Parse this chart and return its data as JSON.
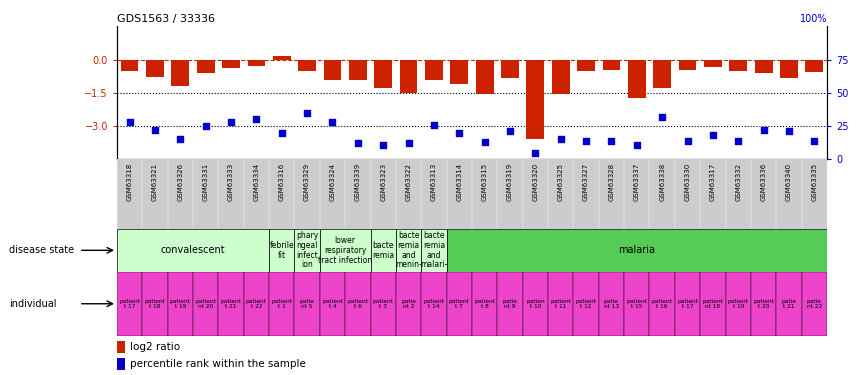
{
  "title": "GDS1563 / 33336",
  "samples": [
    "GSM63318",
    "GSM63321",
    "GSM63326",
    "GSM63331",
    "GSM63333",
    "GSM63334",
    "GSM63316",
    "GSM63329",
    "GSM63324",
    "GSM63339",
    "GSM63323",
    "GSM63322",
    "GSM63313",
    "GSM63314",
    "GSM63315",
    "GSM63319",
    "GSM63320",
    "GSM63325",
    "GSM63327",
    "GSM63328",
    "GSM63337",
    "GSM63338",
    "GSM63330",
    "GSM63317",
    "GSM63332",
    "GSM63336",
    "GSM63340",
    "GSM63335"
  ],
  "log2_ratio": [
    -0.5,
    -0.8,
    -1.2,
    -0.6,
    -0.4,
    -0.3,
    0.15,
    -0.5,
    -0.9,
    -0.9,
    -1.3,
    -1.5,
    -0.9,
    -1.1,
    -1.55,
    -0.85,
    -3.6,
    -1.55,
    -0.5,
    -0.45,
    -1.75,
    -1.3,
    -0.45,
    -0.35,
    -0.5,
    -0.6,
    -0.85,
    -0.55
  ],
  "percentile_rank": [
    28,
    22,
    15,
    25,
    28,
    30,
    20,
    35,
    28,
    12,
    11,
    12,
    26,
    20,
    13,
    21,
    5,
    15,
    14,
    14,
    11,
    32,
    14,
    18,
    14,
    22,
    21,
    14
  ],
  "disease_state_groups": [
    {
      "label": "convalescent",
      "start": 0,
      "end": 5,
      "color": "#ccffcc"
    },
    {
      "label": "febrile\nfit",
      "start": 6,
      "end": 6,
      "color": "#ccffcc"
    },
    {
      "label": "phary\nngeal\ninfect\nion",
      "start": 7,
      "end": 7,
      "color": "#ccffcc"
    },
    {
      "label": "lower\nrespiratory\ntract infection",
      "start": 8,
      "end": 9,
      "color": "#ccffcc"
    },
    {
      "label": "bacte\nremia",
      "start": 10,
      "end": 10,
      "color": "#ccffcc"
    },
    {
      "label": "bacte\nremia\nand\nmenin-",
      "start": 11,
      "end": 11,
      "color": "#ccffcc"
    },
    {
      "label": "bacte\nremia\nand\nmalari-",
      "start": 12,
      "end": 12,
      "color": "#ccffcc"
    },
    {
      "label": "malaria",
      "start": 13,
      "end": 27,
      "color": "#55cc55"
    }
  ],
  "individual_labels": [
    "patient\nt 17",
    "patient\nt 18",
    "patient\nt 19",
    "patient\nnt 20",
    "patient\nt 21",
    "patient\nt 22",
    "patient\nt 1",
    "patie\nnt 5",
    "patient\nt 4",
    "patient\nt 6",
    "patient\nt 3",
    "patie\nnt 2",
    "patient\nt 14",
    "patient\nt 7",
    "patient\nt 8",
    "patie\nnt 9",
    "patien\nt 10",
    "patient\nt 11",
    "patient\nt 12",
    "patie\nnt 13",
    "patient\nt 15",
    "patient\nt 16",
    "patient\nt 17",
    "patient\nnt 18",
    "patient\nt 19",
    "patient\nt 20",
    "patie\nt 21",
    "patie\nnt 22"
  ],
  "ylim_left": [
    -4.5,
    1.5
  ],
  "ylim_right": [
    0,
    100
  ],
  "yticks_left": [
    0,
    -1.5,
    -3.0
  ],
  "yticks_right": [
    75,
    50,
    25,
    0
  ],
  "bar_color": "#cc2200",
  "dot_color": "#0000cc",
  "ref_line_color": "#cc2200",
  "dotted_line_color": "black",
  "background_color": "white",
  "xlabels_bg": "#cccccc",
  "individual_color": "#ee44cc",
  "disease_light_color": "#ccffcc",
  "disease_dark_color": "#55cc55"
}
